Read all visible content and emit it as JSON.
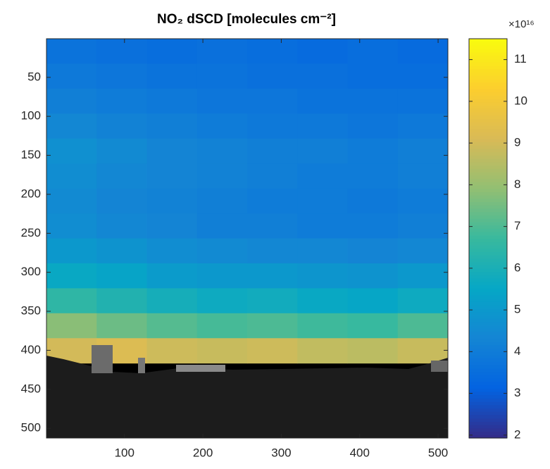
{
  "chart_data": {
    "type": "heatmap",
    "title": "NO₂ dSCD [molecules cm⁻²]",
    "xlim": [
      0.5,
      512.5
    ],
    "ylim": [
      0.5,
      512.5
    ],
    "y_reversed": true,
    "xticks": [
      100,
      200,
      300,
      400,
      500
    ],
    "yticks": [
      50,
      100,
      150,
      200,
      250,
      300,
      350,
      400,
      450,
      500
    ],
    "clim": [
      1.93,
      11.5
    ],
    "cticks": [
      2,
      3,
      4,
      5,
      6,
      7,
      8,
      9,
      10,
      11
    ],
    "colorbar_exponent": "×10¹⁶",
    "colormap": [
      "#352a87",
      "#0363e1",
      "#1485d4",
      "#06a7c6",
      "#38b99e",
      "#92bf73",
      "#d9ba56",
      "#fcce2e",
      "#f9fb0e"
    ],
    "values": [
      [
        3.7,
        3.6,
        3.5,
        3.6,
        3.5,
        3.4,
        3.5,
        3.4
      ],
      [
        3.9,
        3.8,
        3.7,
        3.7,
        3.6,
        3.6,
        3.5,
        3.5
      ],
      [
        4.1,
        4.0,
        3.9,
        3.8,
        3.8,
        3.7,
        3.7,
        3.7
      ],
      [
        4.4,
        4.2,
        4.1,
        4.0,
        3.9,
        3.9,
        3.8,
        3.9
      ],
      [
        4.7,
        4.5,
        4.3,
        4.2,
        4.1,
        4.1,
        4.0,
        4.1
      ],
      [
        4.6,
        4.4,
        4.3,
        4.2,
        4.1,
        4.0,
        4.0,
        4.1
      ],
      [
        4.5,
        4.3,
        4.2,
        4.1,
        4.0,
        4.0,
        3.9,
        4.0
      ],
      [
        4.6,
        4.4,
        4.3,
        4.1,
        4.1,
        4.0,
        4.0,
        4.1
      ],
      [
        5.0,
        4.8,
        4.6,
        4.5,
        4.4,
        4.4,
        4.3,
        4.4
      ],
      [
        5.6,
        5.4,
        5.1,
        5.0,
        5.0,
        4.9,
        4.8,
        5.0
      ],
      [
        6.5,
        6.2,
        5.9,
        5.7,
        5.8,
        5.6,
        5.5,
        5.7
      ],
      [
        7.8,
        7.4,
        7.1,
        6.9,
        7.0,
        6.8,
        6.7,
        7.0
      ],
      [
        9.0,
        9.2,
        8.9,
        8.8,
        8.9,
        8.7,
        8.6,
        8.8
      ],
      [
        null,
        null,
        null,
        null,
        null,
        null,
        null,
        null
      ],
      [
        null,
        null,
        null,
        null,
        null,
        null,
        null,
        null
      ],
      [
        null,
        null,
        null,
        null,
        null,
        null,
        null,
        null
      ]
    ]
  }
}
